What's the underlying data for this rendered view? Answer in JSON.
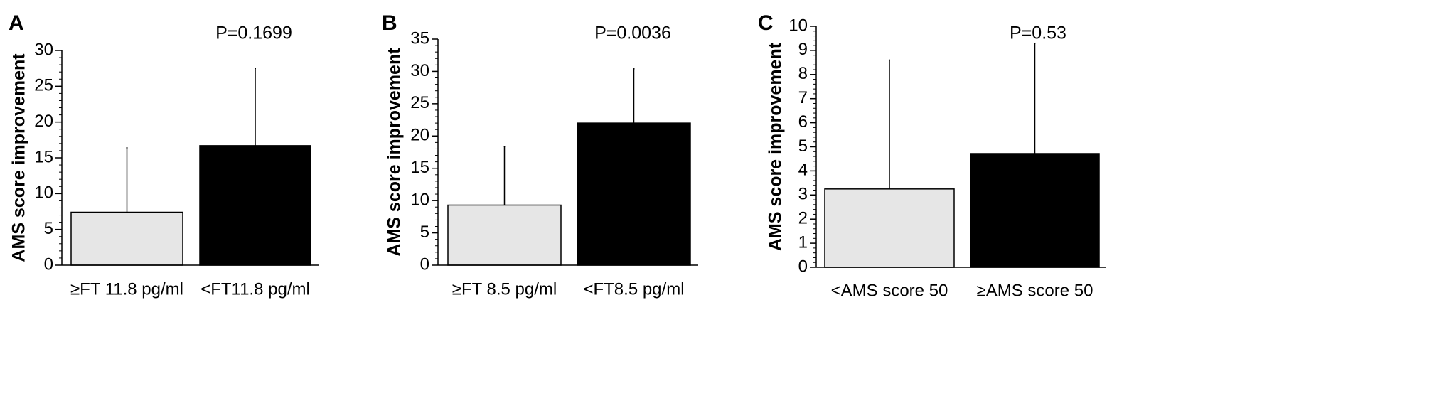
{
  "colors": {
    "axis": "#000000",
    "bar_light": "#e6e6e6",
    "bar_dark": "#000000",
    "background": "#ffffff"
  },
  "chart_data": [
    {
      "type": "bar",
      "panel_label": "A",
      "ylabel": "AMS score improvement",
      "annotation": "P=0.1699",
      "ylim": [
        0,
        30
      ],
      "y_major_ticks": [
        0,
        5,
        10,
        15,
        20,
        25,
        30
      ],
      "y_tick_labels": [
        "0",
        "5",
        "10",
        "15",
        "20",
        "25",
        "30"
      ],
      "y_minor_step": 1,
      "categories": [
        "≥FT 11.8 pg/ml",
        "<FT11.8 pg/ml"
      ],
      "values": [
        7.4,
        16.7
      ],
      "error_upper": [
        16.4,
        27.5
      ],
      "bar_colors": [
        "#e6e6e6",
        "#000000"
      ],
      "grid": false
    },
    {
      "type": "bar",
      "panel_label": "B",
      "ylabel": "AMS score improvement",
      "annotation": "P=0.0036",
      "ylim": [
        0,
        35
      ],
      "y_major_ticks": [
        0,
        5,
        10,
        15,
        20,
        25,
        30,
        35
      ],
      "y_tick_labels": [
        "0",
        "5",
        "10",
        "15",
        "20",
        "25",
        "30",
        "35"
      ],
      "y_minor_step": 1,
      "categories": [
        "≥FT 8.5 pg/ml",
        "<FT8.5 pg/ml"
      ],
      "values": [
        9.3,
        22.0
      ],
      "error_upper": [
        18.4,
        30.4
      ],
      "bar_colors": [
        "#e6e6e6",
        "#000000"
      ],
      "grid": false
    },
    {
      "type": "bar",
      "panel_label": "C",
      "ylabel": "AMS score improvement",
      "annotation": "P=0.53",
      "ylim": [
        0,
        10
      ],
      "y_major_ticks": [
        0,
        1,
        2,
        3,
        4,
        5,
        6,
        7,
        8,
        9,
        10
      ],
      "y_tick_labels": [
        "0",
        "1",
        "2",
        "3",
        "4",
        "5",
        "6",
        "7",
        "8",
        "9",
        "10"
      ],
      "y_minor_step": 0.2,
      "categories": [
        "<AMS score 50",
        "≥AMS score 50"
      ],
      "values": [
        3.25,
        4.72
      ],
      "error_upper": [
        8.6,
        9.3
      ],
      "bar_colors": [
        "#e6e6e6",
        "#000000"
      ],
      "grid": false
    }
  ]
}
